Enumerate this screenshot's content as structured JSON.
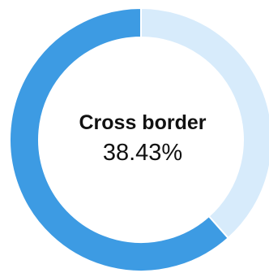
{
  "chart_data": {
    "type": "pie",
    "title": "",
    "slices": [
      {
        "label": "Cross border",
        "value": 38.43,
        "color": "#d7ebfb"
      },
      {
        "label": "",
        "value": 61.57,
        "color": "#3d9be3"
      }
    ],
    "center_label": {
      "title": "Cross border",
      "value": "38.43%"
    },
    "legend": "none"
  }
}
